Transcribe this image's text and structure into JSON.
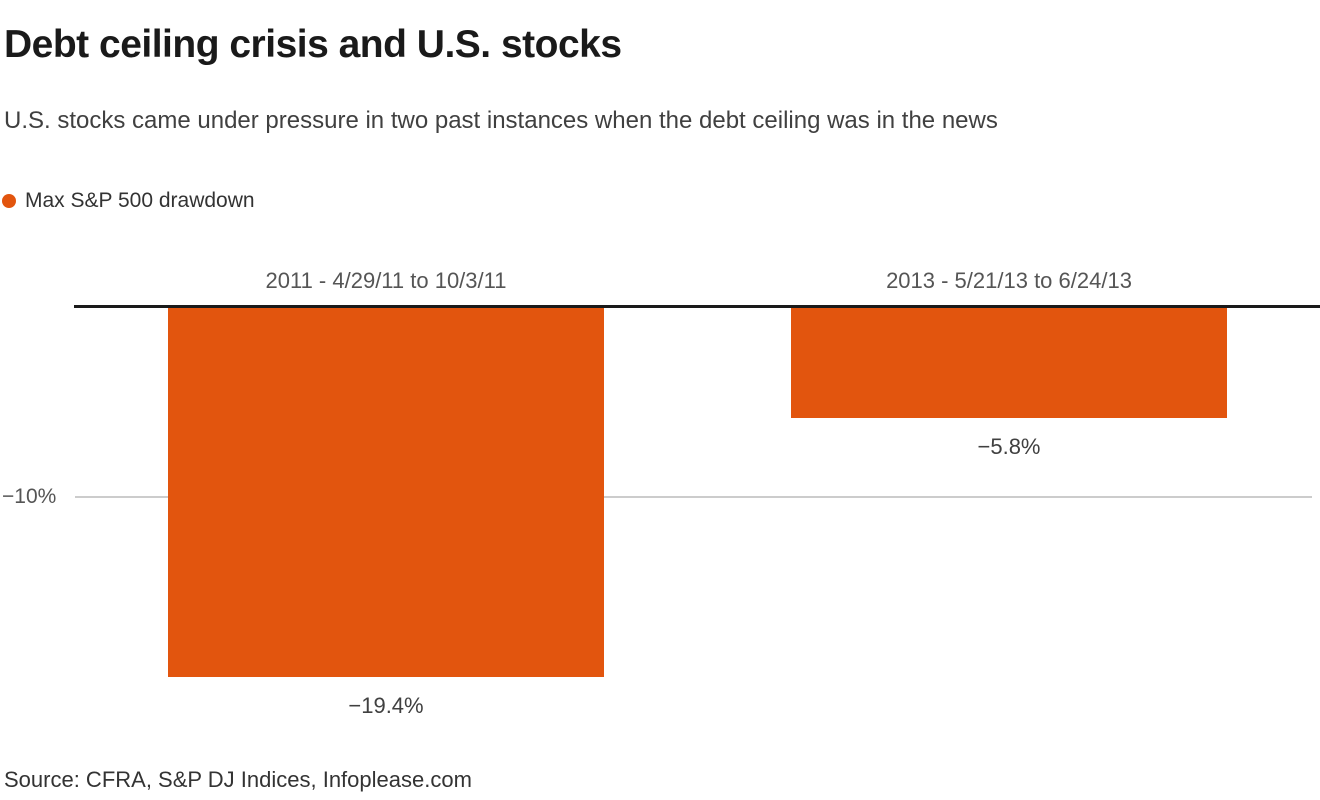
{
  "header": {
    "title": "Debt ceiling crisis and U.S. stocks",
    "subtitle": "U.S. stocks came under pressure in two past instances when the debt ceiling was in the news"
  },
  "legend": {
    "label": "Max S&P 500 drawdown"
  },
  "chart_data": {
    "type": "bar",
    "title": "Debt ceiling crisis and U.S. stocks",
    "series_name": "Max S&P 500 drawdown",
    "categories": [
      "2011 - 4/29/11 to 10/3/11",
      "2013 - 5/21/13 to 6/24/13"
    ],
    "values": [
      -19.4,
      -5.8
    ],
    "value_labels": [
      "−19.4%",
      "−5.8%"
    ],
    "y_axis": {
      "tick_label": "−10%",
      "tick_value": -10
    },
    "ylim": [
      -20,
      0
    ],
    "grid": "single horizontal gridline at -10%",
    "legend_position": "top-left",
    "bar_color": "#e2550e"
  },
  "colors": {
    "accent_orange": "#e2550e",
    "axis_black": "#1a1a1a",
    "gridline_gray": "#cccccc"
  },
  "footer": {
    "source": "Source: CFRA, S&P DJ Indices, Infoplease.com"
  }
}
